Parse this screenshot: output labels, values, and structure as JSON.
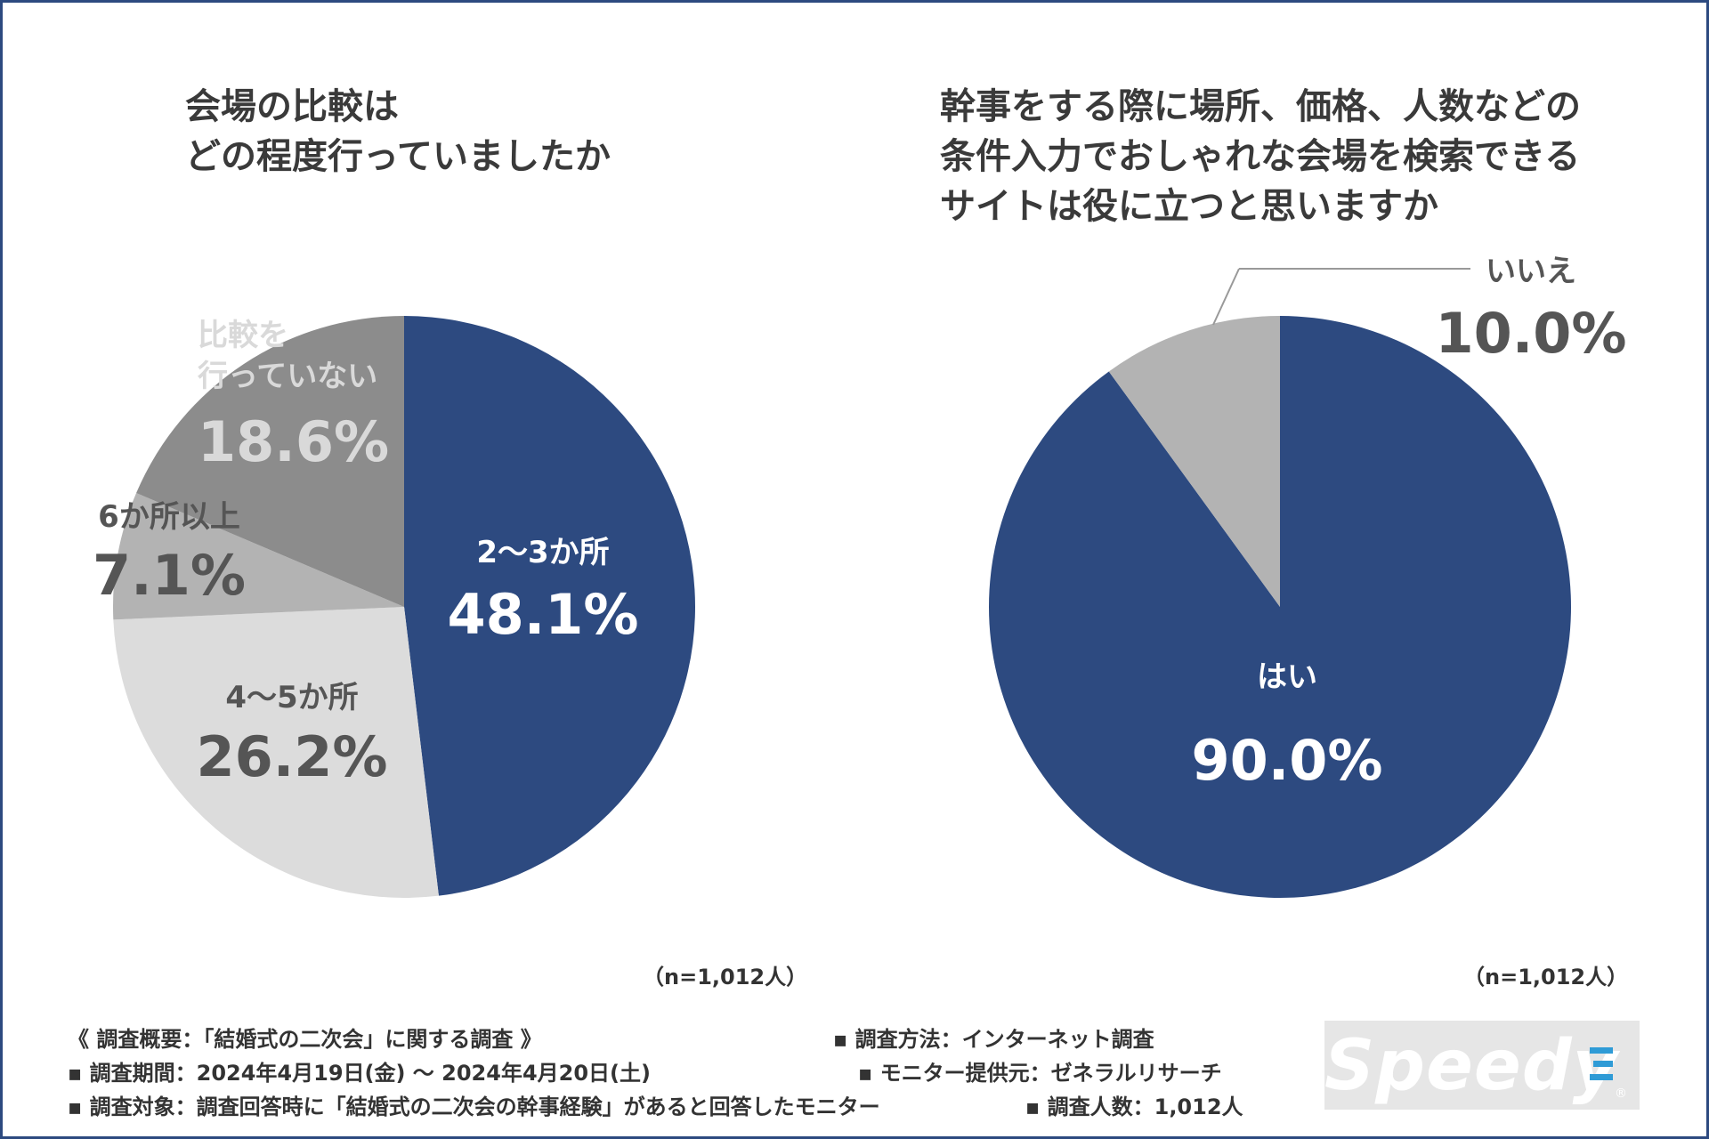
{
  "chart_data": [
    {
      "type": "pie",
      "title": "会場の比較は\nどの程度行っていましたか",
      "slices": [
        {
          "label_lines": [
            "2〜3か所"
          ],
          "value": 48.1,
          "value_label": "48.1%",
          "color": "#2d4a80",
          "text_color": "#ffffff"
        },
        {
          "label_lines": [
            "4〜5か所"
          ],
          "value": 26.2,
          "value_label": "26.2%",
          "color": "#dcdcdc",
          "text_color": "#555555"
        },
        {
          "label_lines": [
            "6か所以上"
          ],
          "value": 7.1,
          "value_label": "7.1%",
          "color": "#b3b3b3",
          "text_color": "#555555"
        },
        {
          "label_lines": [
            "比較を",
            "行っていない"
          ],
          "value": 18.6,
          "value_label": "18.6%",
          "color": "#8c8c8c",
          "text_color": "#d9d9d9"
        }
      ],
      "note": "（n=1,012人）"
    },
    {
      "type": "pie",
      "title": "幹事をする際に場所、価格、人数などの\n条件入力でおしゃれな会場を検索できる\nサイトは役に立つと思いますか",
      "slices": [
        {
          "label_lines": [
            "はい"
          ],
          "value": 90.0,
          "value_label": "90.0%",
          "color": "#2d4a80",
          "text_color": "#ffffff"
        },
        {
          "label_lines": [
            "いいえ"
          ],
          "value": 10.0,
          "value_label": "10.0%",
          "color": "#b3b3b3",
          "text_color": "#555555"
        }
      ],
      "note": "（n=1,012人）"
    }
  ],
  "footer": {
    "summary": "《 調査概要：「結婚式の二次会」に関する調査 》",
    "period": "▪ 調査期間：2024年4月19日(金) 〜 2024年4月20日(土)",
    "target": "▪ 調査対象：調査回答時に「結婚式の二次会の幹事経験」があると回答したモニター",
    "method": "▪ 調査方法：インターネット調査",
    "provider": "▪ モニター提供元：ゼネラルリサーチ",
    "count": "▪ 調査人数：1,012人"
  },
  "logo": {
    "text": "Speedy",
    "reg": "®"
  },
  "colors": {
    "navy": "#2d4a80",
    "border": "#2d4a80"
  }
}
